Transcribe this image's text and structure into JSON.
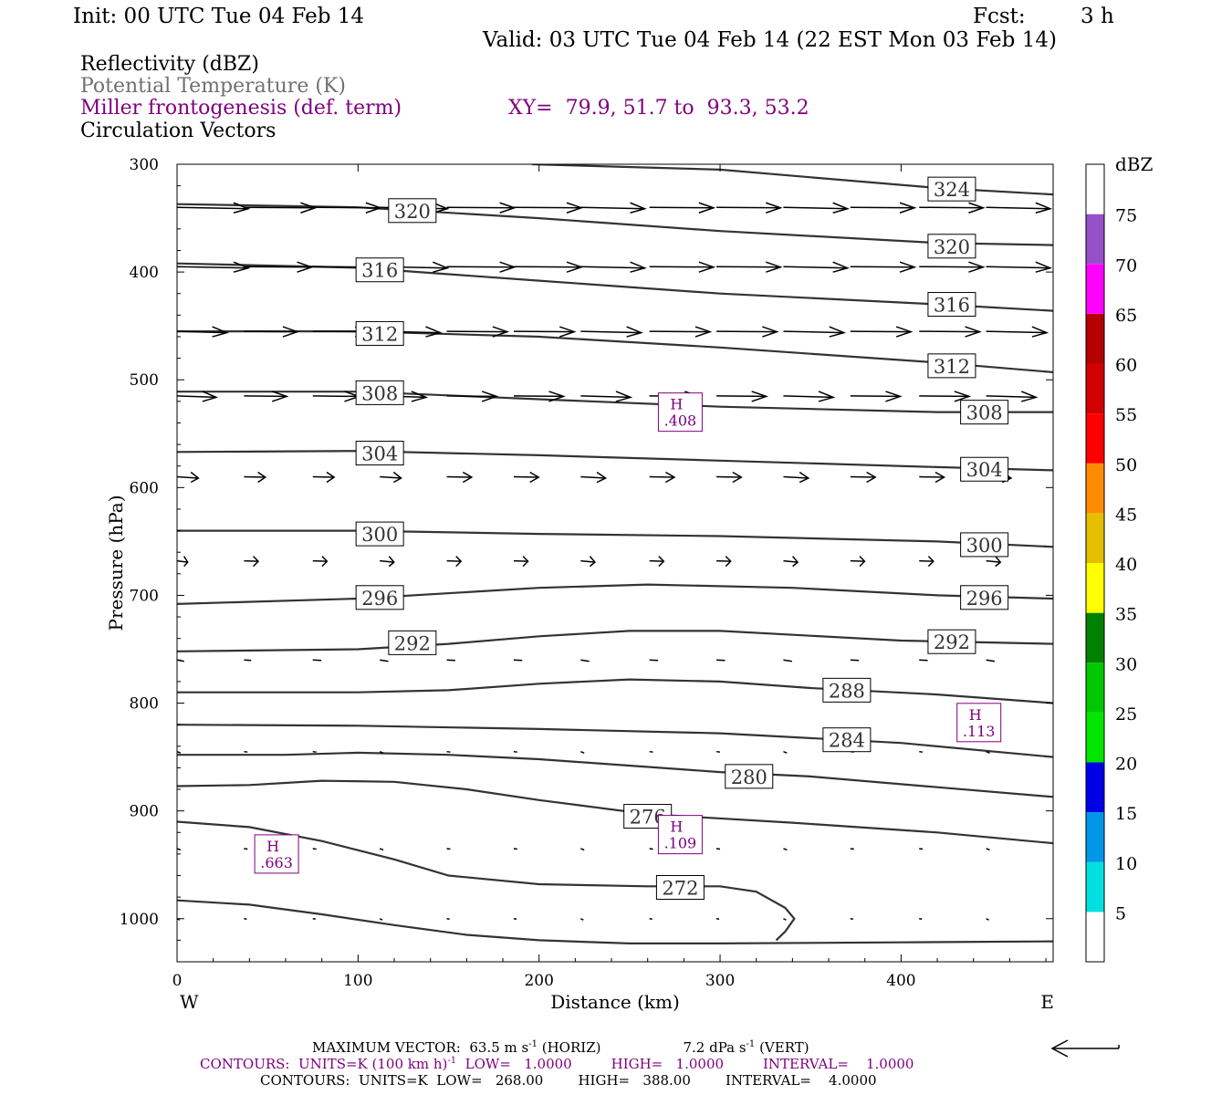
{
  "header": {
    "init": "Init: 00 UTC Tue 04 Feb 14",
    "fcst_label": "Fcst:",
    "fcst_value": "3 h",
    "valid": "Valid: 03 UTC Tue 04 Feb 14 (22 EST Mon 03 Feb 14)"
  },
  "legend": {
    "reflectivity": "Reflectivity (dBZ)",
    "theta": "Potential Temperature (K)",
    "frontogenesis": "Miller frontogenesis (def. term)",
    "xy": "XY=  79.9, 51.7 to  93.3, 53.2",
    "vectors": "Circulation Vectors"
  },
  "colors": {
    "theta": "#333333",
    "frontogenesis": "#800080",
    "vectors": "#000000"
  },
  "chart_data": {
    "type": "line",
    "xlabel": "Distance (km)",
    "ylabel": "Pressure (hPa)",
    "xlim": [
      0,
      484
    ],
    "ylim": [
      1040,
      300
    ],
    "y_log": false,
    "x_ticks": [
      0,
      100,
      200,
      300,
      400
    ],
    "y_ticks": [
      300,
      400,
      500,
      600,
      700,
      800,
      900,
      1000
    ],
    "x_end_labels": {
      "left": "W",
      "right": "E"
    },
    "theta_contours": [
      {
        "level": 324,
        "label": "324",
        "points": [
          [
            196,
            300
          ],
          [
            300,
            305
          ],
          [
            420,
            322
          ],
          [
            484,
            328
          ]
        ],
        "labels_at": [
          [
            428,
            323
          ]
        ]
      },
      {
        "level": 320,
        "label": "320",
        "points": [
          [
            0,
            337
          ],
          [
            100,
            340
          ],
          [
            200,
            350
          ],
          [
            300,
            362
          ],
          [
            420,
            373
          ],
          [
            484,
            375
          ]
        ],
        "labels_at": [
          [
            130,
            343
          ],
          [
            428,
            376
          ]
        ]
      },
      {
        "level": 316,
        "label": "316",
        "points": [
          [
            0,
            392
          ],
          [
            100,
            396
          ],
          [
            200,
            408
          ],
          [
            300,
            420
          ],
          [
            420,
            430
          ],
          [
            484,
            436
          ]
        ],
        "labels_at": [
          [
            112,
            398
          ],
          [
            428,
            430
          ]
        ]
      },
      {
        "level": 312,
        "label": "312",
        "points": [
          [
            0,
            455
          ],
          [
            100,
            455
          ],
          [
            200,
            460
          ],
          [
            300,
            470
          ],
          [
            420,
            484
          ],
          [
            484,
            493
          ]
        ],
        "labels_at": [
          [
            112,
            457
          ],
          [
            428,
            487
          ]
        ]
      },
      {
        "level": 308,
        "label": "308",
        "points": [
          [
            0,
            511
          ],
          [
            100,
            511
          ],
          [
            200,
            518
          ],
          [
            300,
            525
          ],
          [
            420,
            530
          ],
          [
            484,
            530
          ]
        ],
        "labels_at": [
          [
            112,
            512
          ],
          [
            446,
            530
          ]
        ]
      },
      {
        "level": 304,
        "label": "304",
        "points": [
          [
            0,
            567
          ],
          [
            100,
            566
          ],
          [
            200,
            570
          ],
          [
            300,
            575
          ],
          [
            420,
            581
          ],
          [
            484,
            584
          ]
        ],
        "labels_at": [
          [
            112,
            568
          ],
          [
            446,
            583
          ]
        ]
      },
      {
        "level": 300,
        "label": "300",
        "points": [
          [
            0,
            640
          ],
          [
            100,
            640
          ],
          [
            200,
            643
          ],
          [
            300,
            645
          ],
          [
            420,
            650
          ],
          [
            484,
            655
          ]
        ],
        "labels_at": [
          [
            112,
            643
          ],
          [
            446,
            653
          ]
        ]
      },
      {
        "level": 296,
        "label": "296",
        "points": [
          [
            0,
            708
          ],
          [
            100,
            703
          ],
          [
            200,
            693
          ],
          [
            260,
            690
          ],
          [
            340,
            693
          ],
          [
            420,
            700
          ],
          [
            484,
            703
          ]
        ],
        "labels_at": [
          [
            112,
            702
          ],
          [
            446,
            702
          ]
        ]
      },
      {
        "level": 292,
        "label": "292",
        "points": [
          [
            0,
            752
          ],
          [
            100,
            750
          ],
          [
            150,
            745
          ],
          [
            200,
            738
          ],
          [
            250,
            733
          ],
          [
            300,
            733
          ],
          [
            400,
            742
          ],
          [
            484,
            745
          ]
        ],
        "labels_at": [
          [
            130,
            744
          ],
          [
            428,
            743
          ]
        ]
      },
      {
        "level": 288,
        "label": "288",
        "points": [
          [
            0,
            790
          ],
          [
            100,
            790
          ],
          [
            150,
            788
          ],
          [
            200,
            782
          ],
          [
            250,
            778
          ],
          [
            300,
            780
          ],
          [
            350,
            786
          ],
          [
            420,
            792
          ],
          [
            484,
            800
          ]
        ],
        "labels_at": [
          [
            370,
            788
          ]
        ]
      },
      {
        "level": 284,
        "label": "284",
        "points": [
          [
            0,
            820
          ],
          [
            100,
            821
          ],
          [
            200,
            824
          ],
          [
            300,
            828
          ],
          [
            400,
            837
          ],
          [
            484,
            850
          ]
        ],
        "labels_at": [
          [
            370,
            834
          ]
        ]
      },
      {
        "level": 280,
        "label": "280",
        "points": [
          [
            0,
            848
          ],
          [
            60,
            848
          ],
          [
            100,
            846
          ],
          [
            150,
            848
          ],
          [
            200,
            852
          ],
          [
            300,
            864
          ],
          [
            350,
            868
          ],
          [
            420,
            878
          ],
          [
            484,
            887
          ]
        ],
        "labels_at": [
          [
            316,
            868
          ]
        ]
      },
      {
        "level": 276,
        "label": "276",
        "points": [
          [
            0,
            877
          ],
          [
            40,
            876
          ],
          [
            80,
            872
          ],
          [
            120,
            873
          ],
          [
            160,
            880
          ],
          [
            200,
            890
          ],
          [
            260,
            903
          ],
          [
            340,
            911
          ],
          [
            420,
            920
          ],
          [
            484,
            930
          ]
        ],
        "labels_at": [
          [
            260,
            905
          ]
        ]
      },
      {
        "level": 272,
        "label": "272",
        "points": [
          [
            0,
            910
          ],
          [
            40,
            915
          ],
          [
            80,
            928
          ],
          [
            120,
            945
          ],
          [
            150,
            960
          ],
          [
            200,
            968
          ],
          [
            260,
            970
          ],
          [
            300,
            970
          ],
          [
            320,
            975
          ],
          [
            336,
            990
          ],
          [
            341,
            1000
          ],
          [
            336,
            1012
          ],
          [
            331,
            1020
          ]
        ],
        "labels_at": [
          [
            278,
            971
          ]
        ]
      },
      {
        "level": 268,
        "label": "",
        "points": [
          [
            0,
            983
          ],
          [
            40,
            987
          ],
          [
            80,
            996
          ],
          [
            120,
            1006
          ],
          [
            160,
            1015
          ],
          [
            200,
            1020
          ],
          [
            250,
            1023
          ],
          [
            300,
            1023
          ],
          [
            400,
            1022
          ],
          [
            484,
            1021
          ]
        ],
        "labels_at": []
      }
    ],
    "frontogenesis_maxima": [
      {
        "label": "H",
        "value": ".663",
        "x": 55,
        "p": 940
      },
      {
        "label": "H",
        "value": ".408",
        "x": 278,
        "p": 530
      },
      {
        "label": "H",
        "value": ".109",
        "x": 278,
        "p": 922
      },
      {
        "label": "H",
        "value": ".113",
        "x": 443,
        "p": 818
      }
    ],
    "vector_rows": [
      {
        "p": 340,
        "x": [
          0,
          37,
          75,
          112,
          149,
          186,
          223,
          261,
          298,
          335,
          372,
          410,
          447,
          484
        ],
        "u": [
          1.0,
          1.0,
          0.95,
          0.95,
          0.95,
          0.95,
          0.9,
          0.9,
          0.9,
          0.9,
          0.9,
          0.9,
          0.9,
          0.9
        ]
      },
      {
        "p": 395,
        "x": [
          0,
          37,
          75,
          112,
          149,
          186,
          223,
          261,
          298,
          335,
          372,
          410,
          447,
          484
        ],
        "u": [
          1.0,
          0.95,
          0.95,
          0.95,
          0.95,
          0.95,
          0.9,
          0.9,
          0.9,
          0.9,
          0.9,
          0.9,
          0.9,
          0.9
        ]
      },
      {
        "p": 455,
        "x": [
          0,
          37,
          75,
          112,
          149,
          186,
          223,
          261,
          298,
          335,
          372,
          410,
          447,
          484
        ],
        "u": [
          0.7,
          0.75,
          0.8,
          0.85,
          0.85,
          0.85,
          0.85,
          0.85,
          0.85,
          0.85,
          0.85,
          0.85,
          0.85,
          0.85
        ]
      },
      {
        "p": 515,
        "x": [
          0,
          37,
          75,
          112,
          149,
          186,
          223,
          261,
          298,
          335,
          372,
          410,
          447,
          484
        ],
        "u": [
          0.55,
          0.6,
          0.65,
          0.65,
          0.7,
          0.7,
          0.7,
          0.7,
          0.7,
          0.7,
          0.7,
          0.7,
          0.7,
          0.7
        ]
      },
      {
        "p": 590,
        "x": [
          0,
          37,
          75,
          112,
          149,
          186,
          223,
          261,
          298,
          335,
          372,
          410,
          447,
          484
        ],
        "u": [
          0.3,
          0.3,
          0.3,
          0.3,
          0.35,
          0.35,
          0.35,
          0.35,
          0.35,
          0.35,
          0.35,
          0.35,
          0.35,
          0.35
        ]
      },
      {
        "p": 668,
        "x": [
          0,
          37,
          75,
          112,
          149,
          186,
          223,
          261,
          298,
          335,
          372,
          410,
          447,
          484
        ],
        "u": [
          0.15,
          0.2,
          0.2,
          0.2,
          0.2,
          0.2,
          0.2,
          0.2,
          0.2,
          0.2,
          0.2,
          0.2,
          0.2,
          0.2
        ]
      },
      {
        "p": 760,
        "x": [
          0,
          37,
          75,
          112,
          149,
          186,
          223,
          261,
          298,
          335,
          372,
          410,
          447,
          484
        ],
        "u": [
          0.1,
          0.1,
          0.12,
          0.12,
          0.12,
          0.12,
          0.12,
          0.12,
          0.12,
          0.12,
          0.12,
          0.12,
          0.12,
          0.12
        ]
      },
      {
        "p": 845,
        "x": [
          0,
          37,
          75,
          112,
          149,
          186,
          223,
          261,
          298,
          335,
          372,
          410,
          447,
          484
        ],
        "u": [
          0.05,
          0.05,
          0.05,
          0.05,
          0.05,
          0.05,
          0.05,
          0.05,
          0.05,
          0.05,
          0.05,
          0.05,
          0.05,
          0.05
        ]
      },
      {
        "p": 935,
        "x": [
          0,
          37,
          75,
          112,
          149,
          186,
          223,
          261,
          298,
          335,
          372,
          410,
          447,
          484
        ],
        "u": [
          0.05,
          0.05,
          0.05,
          0.05,
          0.05,
          0.05,
          0.05,
          0.05,
          0.05,
          0.05,
          0.05,
          0.05,
          0.05,
          0.05
        ]
      },
      {
        "p": 1000,
        "x": [
          0,
          37,
          75,
          112,
          149,
          186,
          223,
          261,
          298,
          335,
          372,
          410,
          447,
          484
        ],
        "u": [
          0.03,
          0.03,
          0.03,
          0.03,
          0.03,
          0.03,
          0.03,
          0.03,
          0.03,
          0.03,
          0.03,
          0.03,
          0.03,
          0.03
        ]
      }
    ],
    "colorbar": {
      "unit": "dBZ",
      "bins": [
        {
          "from": 0,
          "to": 5,
          "color": "#ffffff",
          "label": ""
        },
        {
          "from": 5,
          "to": 10,
          "color": "#00e0e0",
          "label": "5"
        },
        {
          "from": 10,
          "to": 15,
          "color": "#0096e6",
          "label": "10"
        },
        {
          "from": 15,
          "to": 20,
          "color": "#0000e6",
          "label": "15"
        },
        {
          "from": 20,
          "to": 25,
          "color": "#00e600",
          "label": "20"
        },
        {
          "from": 25,
          "to": 30,
          "color": "#00c800",
          "label": "25"
        },
        {
          "from": 30,
          "to": 35,
          "color": "#008200",
          "label": "30"
        },
        {
          "from": 35,
          "to": 40,
          "color": "#ffff00",
          "label": "35"
        },
        {
          "from": 40,
          "to": 45,
          "color": "#e6be00",
          "label": "40"
        },
        {
          "from": 45,
          "to": 50,
          "color": "#ff8c00",
          "label": "45"
        },
        {
          "from": 50,
          "to": 55,
          "color": "#ff0000",
          "label": "50"
        },
        {
          "from": 55,
          "to": 60,
          "color": "#d20000",
          "label": "55"
        },
        {
          "from": 60,
          "to": 65,
          "color": "#b40000",
          "label": "60"
        },
        {
          "from": 65,
          "to": 70,
          "color": "#ff00ff",
          "label": "65"
        },
        {
          "from": 70,
          "to": 75,
          "color": "#9650c8",
          "label": "70"
        },
        {
          "from": 75,
          "to": 80,
          "color": "#ffffff",
          "label": "75"
        }
      ]
    }
  },
  "footer": {
    "max_vector_prefix": "MAXIMUM VECTOR:  63.5 m s",
    "max_vector_exp": "-1",
    "max_vector_horiz": " (HORIZ)",
    "max_vector_vert_prefix": "7.2 dPa s",
    "max_vector_vert_exp": "-1",
    "max_vector_vert_suffix": " (VERT)",
    "contours_purple_prefix": "CONTOURS:  UNITS=K (100 km h)",
    "contours_purple_exp": "-1",
    "contours_purple_rest": "  LOW=   1.0000         HIGH=   1.0000         INTERVAL=    1.0000",
    "contours_black": "CONTOURS:  UNITS=K  LOW=   268.00        HIGH=   388.00        INTERVAL=    4.0000"
  }
}
